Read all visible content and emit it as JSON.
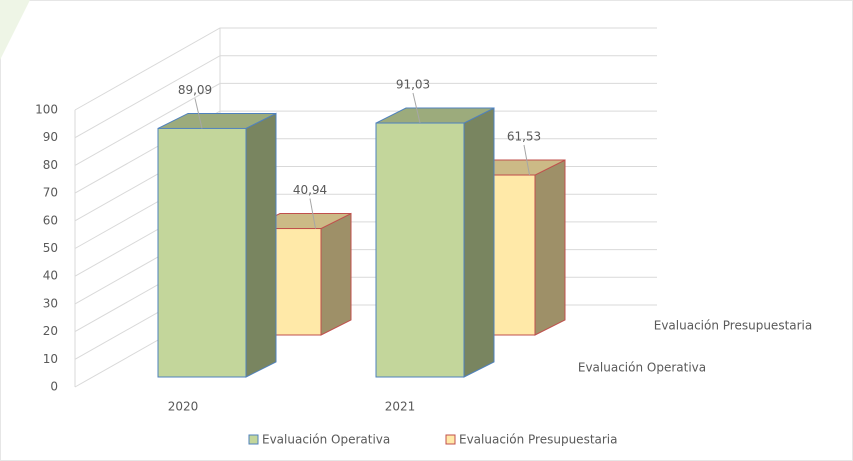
{
  "chart_data": {
    "type": "bar3d",
    "categories": [
      "2020",
      "2021"
    ],
    "series": [
      {
        "name": "Evaluación Operativa",
        "color": "#c3d69b",
        "values": [
          89.09,
          91.03
        ],
        "value_labels": [
          "89,09",
          "91,03"
        ]
      },
      {
        "name": "Evaluación Presupuestaria",
        "color": "#ffe9a8",
        "values": [
          40.94,
          61.53
        ],
        "value_labels": [
          "40,94",
          "61,53"
        ]
      }
    ],
    "ylim": [
      0,
      100
    ],
    "yticks": [
      0,
      10,
      20,
      30,
      40,
      50,
      60,
      70,
      80,
      90,
      100
    ],
    "grid": true,
    "legend": "bottom"
  }
}
